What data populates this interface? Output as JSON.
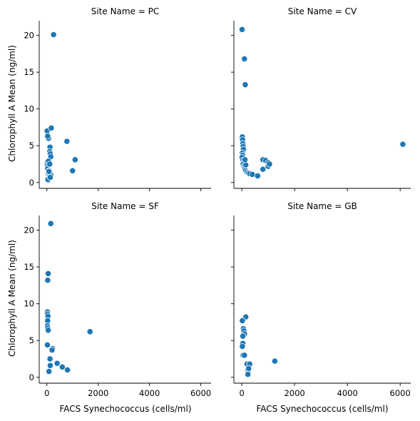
{
  "chart_data": {
    "type": "scatter",
    "facet_variable": "Site Name",
    "xlabel": "FACS Synechococcus (cells/ml)",
    "ylabel": "Chlorophyll A Mean (ng/ml)",
    "xlim": [
      -300,
      6400
    ],
    "ylim": [
      -0.8,
      22
    ],
    "x_ticks": [
      0,
      2000,
      4000,
      6000
    ],
    "y_ticks": [
      0,
      5,
      10,
      15,
      20
    ],
    "point_color": "#1f77b4",
    "grid": false,
    "panels": [
      {
        "title": "Site Name = PC",
        "x": [
          260,
          10,
          60,
          30,
          170,
          780,
          1100,
          120,
          110,
          130,
          150,
          20,
          15,
          25,
          30,
          60,
          40,
          70,
          90,
          110,
          130,
          150,
          60,
          70,
          80,
          100,
          120,
          1000,
          50,
          40,
          80,
          110,
          130
        ],
        "y": [
          20.1,
          7.0,
          6.0,
          6.3,
          7.4,
          5.6,
          3.1,
          4.8,
          4.2,
          3.9,
          3.5,
          2.8,
          2.5,
          2.2,
          1.9,
          2.9,
          1.1,
          1.3,
          1.6,
          1.4,
          1.2,
          1.0,
          0.9,
          0.7,
          0.5,
          0.8,
          0.6,
          1.6,
          0.3,
          0.4,
          1.5,
          2.5,
          0.7
        ]
      },
      {
        "title": "Site Name = CV",
        "x": [
          10,
          100,
          130,
          20,
          30,
          40,
          50,
          60,
          20,
          30,
          10,
          40,
          60,
          50,
          80,
          100,
          120,
          150,
          200,
          250,
          300,
          400,
          600,
          800,
          800,
          900,
          1000,
          1000,
          1050,
          6100,
          150,
          120
        ],
        "y": [
          20.8,
          16.8,
          13.3,
          6.2,
          5.8,
          5.3,
          4.9,
          4.5,
          4.0,
          3.7,
          3.4,
          3.0,
          2.7,
          2.5,
          2.2,
          2.0,
          1.8,
          1.6,
          1.4,
          1.3,
          1.2,
          1.1,
          0.9,
          1.8,
          3.1,
          3.0,
          2.7,
          2.2,
          2.5,
          5.2,
          2.4,
          3.1
        ]
      },
      {
        "title": "Site Name = SF",
        "x": [
          150,
          50,
          30,
          20,
          20,
          40,
          30,
          20,
          30,
          50,
          20,
          220,
          200,
          120,
          400,
          1680,
          600,
          800,
          130,
          80
        ],
        "y": [
          20.9,
          14.1,
          13.2,
          8.9,
          8.6,
          8.3,
          7.7,
          7.0,
          6.7,
          6.4,
          4.4,
          3.9,
          3.7,
          2.5,
          1.9,
          6.2,
          1.4,
          1.0,
          1.6,
          0.8
        ]
      },
      {
        "title": "Site Name = GB",
        "x": [
          150,
          20,
          60,
          80,
          100,
          40,
          40,
          20,
          60,
          50,
          100,
          200,
          300,
          1250,
          220,
          240,
          250,
          230,
          260
        ],
        "y": [
          8.2,
          7.7,
          6.6,
          6.3,
          5.9,
          5.6,
          4.6,
          4.2,
          3.0,
          3.0,
          3.0,
          1.8,
          1.8,
          2.2,
          1.0,
          0.8,
          0.5,
          0.4,
          1.2
        ]
      }
    ]
  }
}
